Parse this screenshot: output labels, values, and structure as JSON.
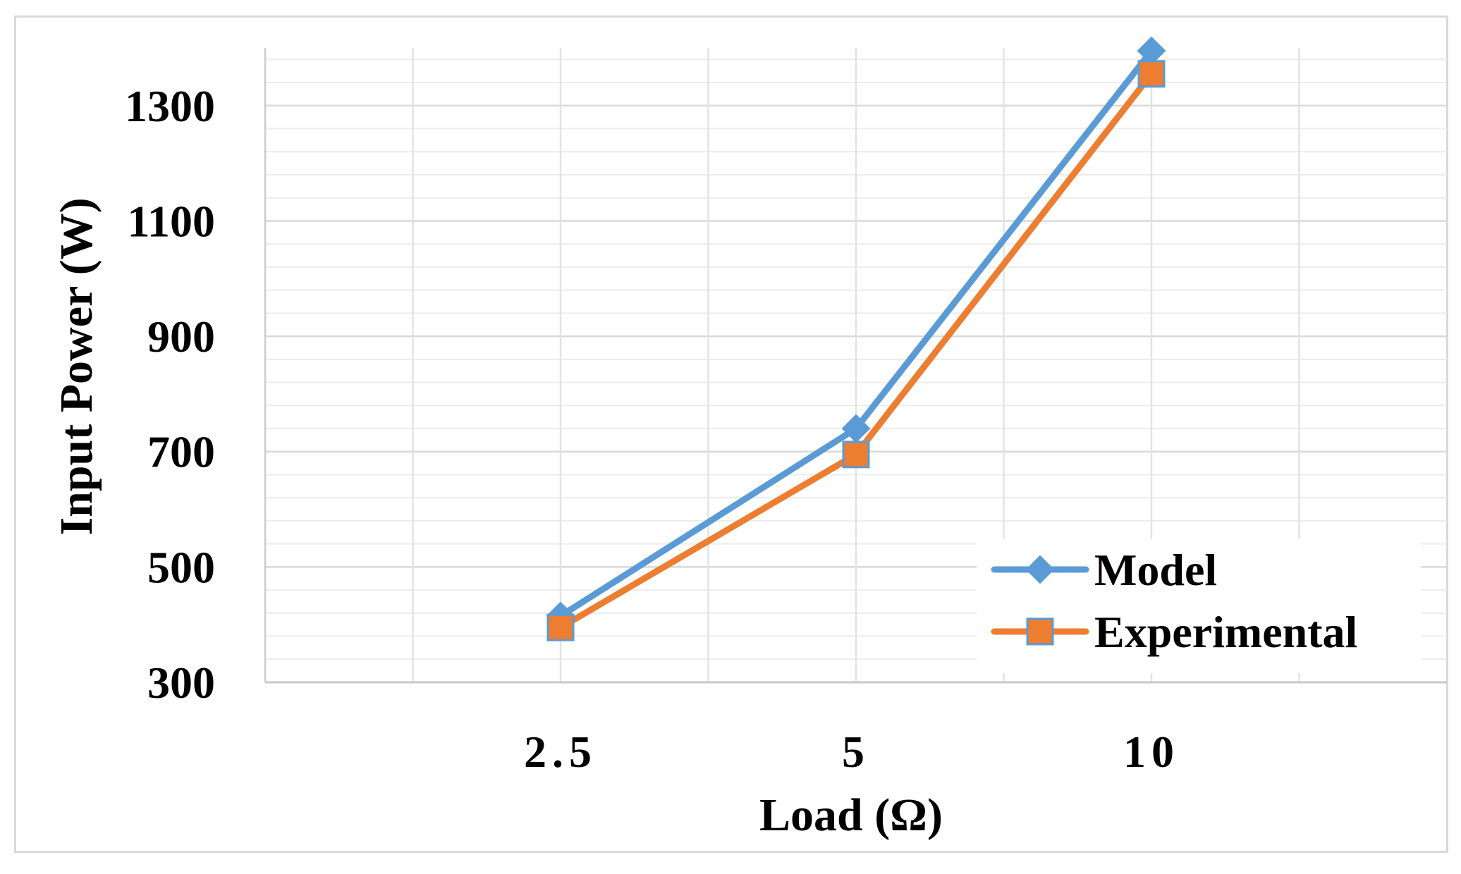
{
  "chart_data": {
    "type": "line",
    "categories": [
      "2.5",
      "5",
      "10"
    ],
    "series": [
      {
        "name": "Model",
        "values": [
          415,
          740,
          1395
        ],
        "color": "#5b9bd5",
        "marker": "diamond"
      },
      {
        "name": "Experimental",
        "values": [
          395,
          695,
          1355
        ],
        "color": "#ed7d31",
        "marker": "square"
      }
    ],
    "xlabel": "Load (Ω)",
    "ylabel": "Input Power (W)",
    "ylim": [
      300,
      1400
    ],
    "yticks": [
      300,
      500,
      700,
      900,
      1100,
      1300
    ],
    "grid": true,
    "legend_position": "bottom-right"
  }
}
